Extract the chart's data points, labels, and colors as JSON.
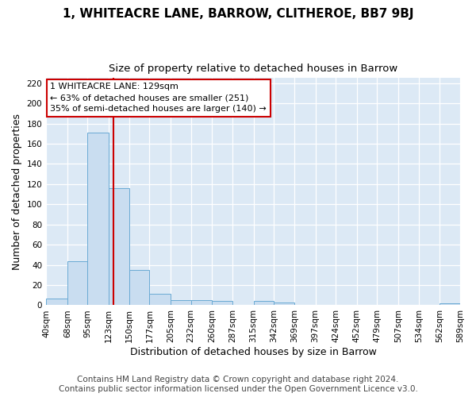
{
  "title": "1, WHITEACRE LANE, BARROW, CLITHEROE, BB7 9BJ",
  "subtitle": "Size of property relative to detached houses in Barrow",
  "xlabel": "Distribution of detached houses by size in Barrow",
  "ylabel": "Number of detached properties",
  "footer_line1": "Contains HM Land Registry data © Crown copyright and database right 2024.",
  "footer_line2": "Contains public sector information licensed under the Open Government Licence v3.0.",
  "bin_edges": [
    40,
    68,
    95,
    123,
    150,
    177,
    205,
    232,
    260,
    287,
    315,
    342,
    369,
    397,
    424,
    452,
    479,
    507,
    534,
    562,
    589
  ],
  "bin_labels": [
    "40sqm",
    "68sqm",
    "95sqm",
    "123sqm",
    "150sqm",
    "177sqm",
    "205sqm",
    "232sqm",
    "260sqm",
    "287sqm",
    "315sqm",
    "342sqm",
    "369sqm",
    "397sqm",
    "424sqm",
    "452sqm",
    "479sqm",
    "507sqm",
    "534sqm",
    "562sqm",
    "589sqm"
  ],
  "counts": [
    7,
    44,
    171,
    116,
    35,
    11,
    5,
    5,
    4,
    0,
    4,
    3,
    0,
    0,
    0,
    0,
    0,
    0,
    0,
    2
  ],
  "bar_color": "#c9ddf0",
  "bar_edge_color": "#6aaad4",
  "vline_x": 129,
  "vline_color": "#cc0000",
  "annotation_line1": "1 WHITEACRE LANE: 129sqm",
  "annotation_line2": "← 63% of detached houses are smaller (251)",
  "annotation_line3": "35% of semi-detached houses are larger (140) →",
  "annotation_box_color": "#ffffff",
  "annotation_box_edge": "#cc0000",
  "ylim": [
    0,
    225
  ],
  "yticks": [
    0,
    20,
    40,
    60,
    80,
    100,
    120,
    140,
    160,
    180,
    200,
    220
  ],
  "plot_bg_color": "#dce9f5",
  "fig_bg_color": "#ffffff",
  "title_fontsize": 11,
  "subtitle_fontsize": 9.5,
  "axis_label_fontsize": 9,
  "tick_fontsize": 7.5,
  "footer_fontsize": 7.5
}
